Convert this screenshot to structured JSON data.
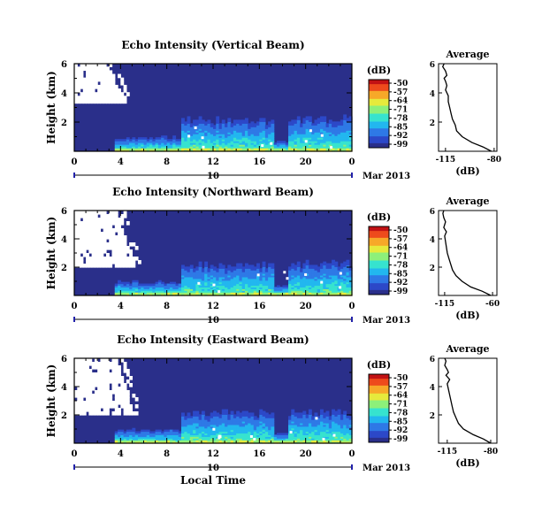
{
  "chart_data": [
    {
      "type": "heatmap",
      "title": "Echo Intensity (Vertical Beam)",
      "ylabel": "Height (km)",
      "y_ticks": [
        "2",
        "4",
        "6"
      ],
      "ylim": [
        0,
        6
      ],
      "x_ticks": [
        "0",
        "4",
        "8",
        "12",
        "16",
        "20",
        "0"
      ],
      "xlim": [
        0,
        24
      ],
      "date_day": "10",
      "date_month": "Mar 2013",
      "colorbar": {
        "label": "(dB)",
        "ticks": [
          "-50",
          "-57",
          "-64",
          "-71",
          "-78",
          "-85",
          "-92",
          "-99"
        ]
      },
      "average": {
        "title": "Average",
        "xlabel": "(dB)",
        "x_ticks": [
          "-115",
          "-80"
        ],
        "xlim": [
          -120,
          -78
        ],
        "y_ticks": [
          "2",
          "4",
          "6"
        ],
        "profile": {
          "db": [
            -82,
            -88,
            -96,
            -103,
            -107,
            -108,
            -110,
            -111,
            -112,
            -113,
            -113,
            -115,
            -114,
            -115,
            -116,
            -114,
            -115,
            -117,
            -116
          ],
          "height_km": [
            0,
            0.3,
            0.6,
            1.0,
            1.4,
            1.8,
            2.2,
            2.6,
            3.0,
            3.4,
            3.8,
            4.2,
            4.5,
            4.8,
            5.0,
            5.2,
            5.5,
            5.8,
            6.0
          ]
        }
      }
    },
    {
      "type": "heatmap",
      "title": "Echo Intensity (Northward Beam)",
      "ylabel": "Height (km)",
      "y_ticks": [
        "2",
        "4",
        "6"
      ],
      "ylim": [
        0,
        6
      ],
      "x_ticks": [
        "0",
        "4",
        "8",
        "12",
        "16",
        "20",
        "0"
      ],
      "xlim": [
        0,
        24
      ],
      "date_day": "10",
      "date_month": "Mar 2013",
      "colorbar": {
        "label": "(dB)",
        "ticks": [
          "-50",
          "-57",
          "-64",
          "-71",
          "-78",
          "-85",
          "-92",
          "-99"
        ]
      },
      "average": {
        "title": "Average",
        "xlabel": "(dB)",
        "x_ticks": [
          "-115",
          "-60"
        ],
        "xlim": [
          -122,
          -55
        ],
        "y_ticks": [
          "2",
          "4",
          "6"
        ],
        "profile": {
          "db": [
            -62,
            -72,
            -85,
            -95,
            -102,
            -106,
            -108,
            -110,
            -112,
            -113,
            -114,
            -115,
            -113,
            -116,
            -115,
            -114,
            -116,
            -117,
            -116
          ],
          "height_km": [
            0,
            0.3,
            0.6,
            1.0,
            1.4,
            1.8,
            2.2,
            2.6,
            3.0,
            3.4,
            3.8,
            4.2,
            4.5,
            4.8,
            5.0,
            5.2,
            5.5,
            5.8,
            6.0
          ]
        }
      }
    },
    {
      "type": "heatmap",
      "title": "Echo Intensity (Eastward Beam)",
      "ylabel": "Height (km)",
      "y_ticks": [
        "2",
        "4",
        "6"
      ],
      "ylim": [
        0,
        6
      ],
      "x_ticks": [
        "0",
        "4",
        "8",
        "12",
        "16",
        "20",
        "0"
      ],
      "xlim": [
        0,
        24
      ],
      "date_day": "10",
      "date_month": "Mar 2013",
      "xlabel": "Local Time",
      "colorbar": {
        "label": "(dB)",
        "ticks": [
          "-50",
          "-57",
          "-64",
          "-71",
          "-78",
          "-85",
          "-92",
          "-99"
        ]
      },
      "average": {
        "title": "Average",
        "xlabel": "(dB)",
        "x_ticks": [
          "-115",
          "-80"
        ],
        "xlim": [
          -122,
          -75
        ],
        "y_ticks": [
          "2",
          "4",
          "6"
        ],
        "profile": {
          "db": [
            -80,
            -86,
            -94,
            -102,
            -106,
            -108,
            -110,
            -111,
            -112,
            -113,
            -114,
            -115,
            -113,
            -116,
            -114,
            -115,
            -117,
            -116,
            -117
          ],
          "height_km": [
            0,
            0.3,
            0.6,
            1.0,
            1.4,
            1.8,
            2.2,
            2.6,
            3.0,
            3.4,
            3.8,
            4.2,
            4.5,
            4.8,
            5.0,
            5.2,
            5.5,
            5.8,
            6.0
          ]
        }
      }
    }
  ]
}
